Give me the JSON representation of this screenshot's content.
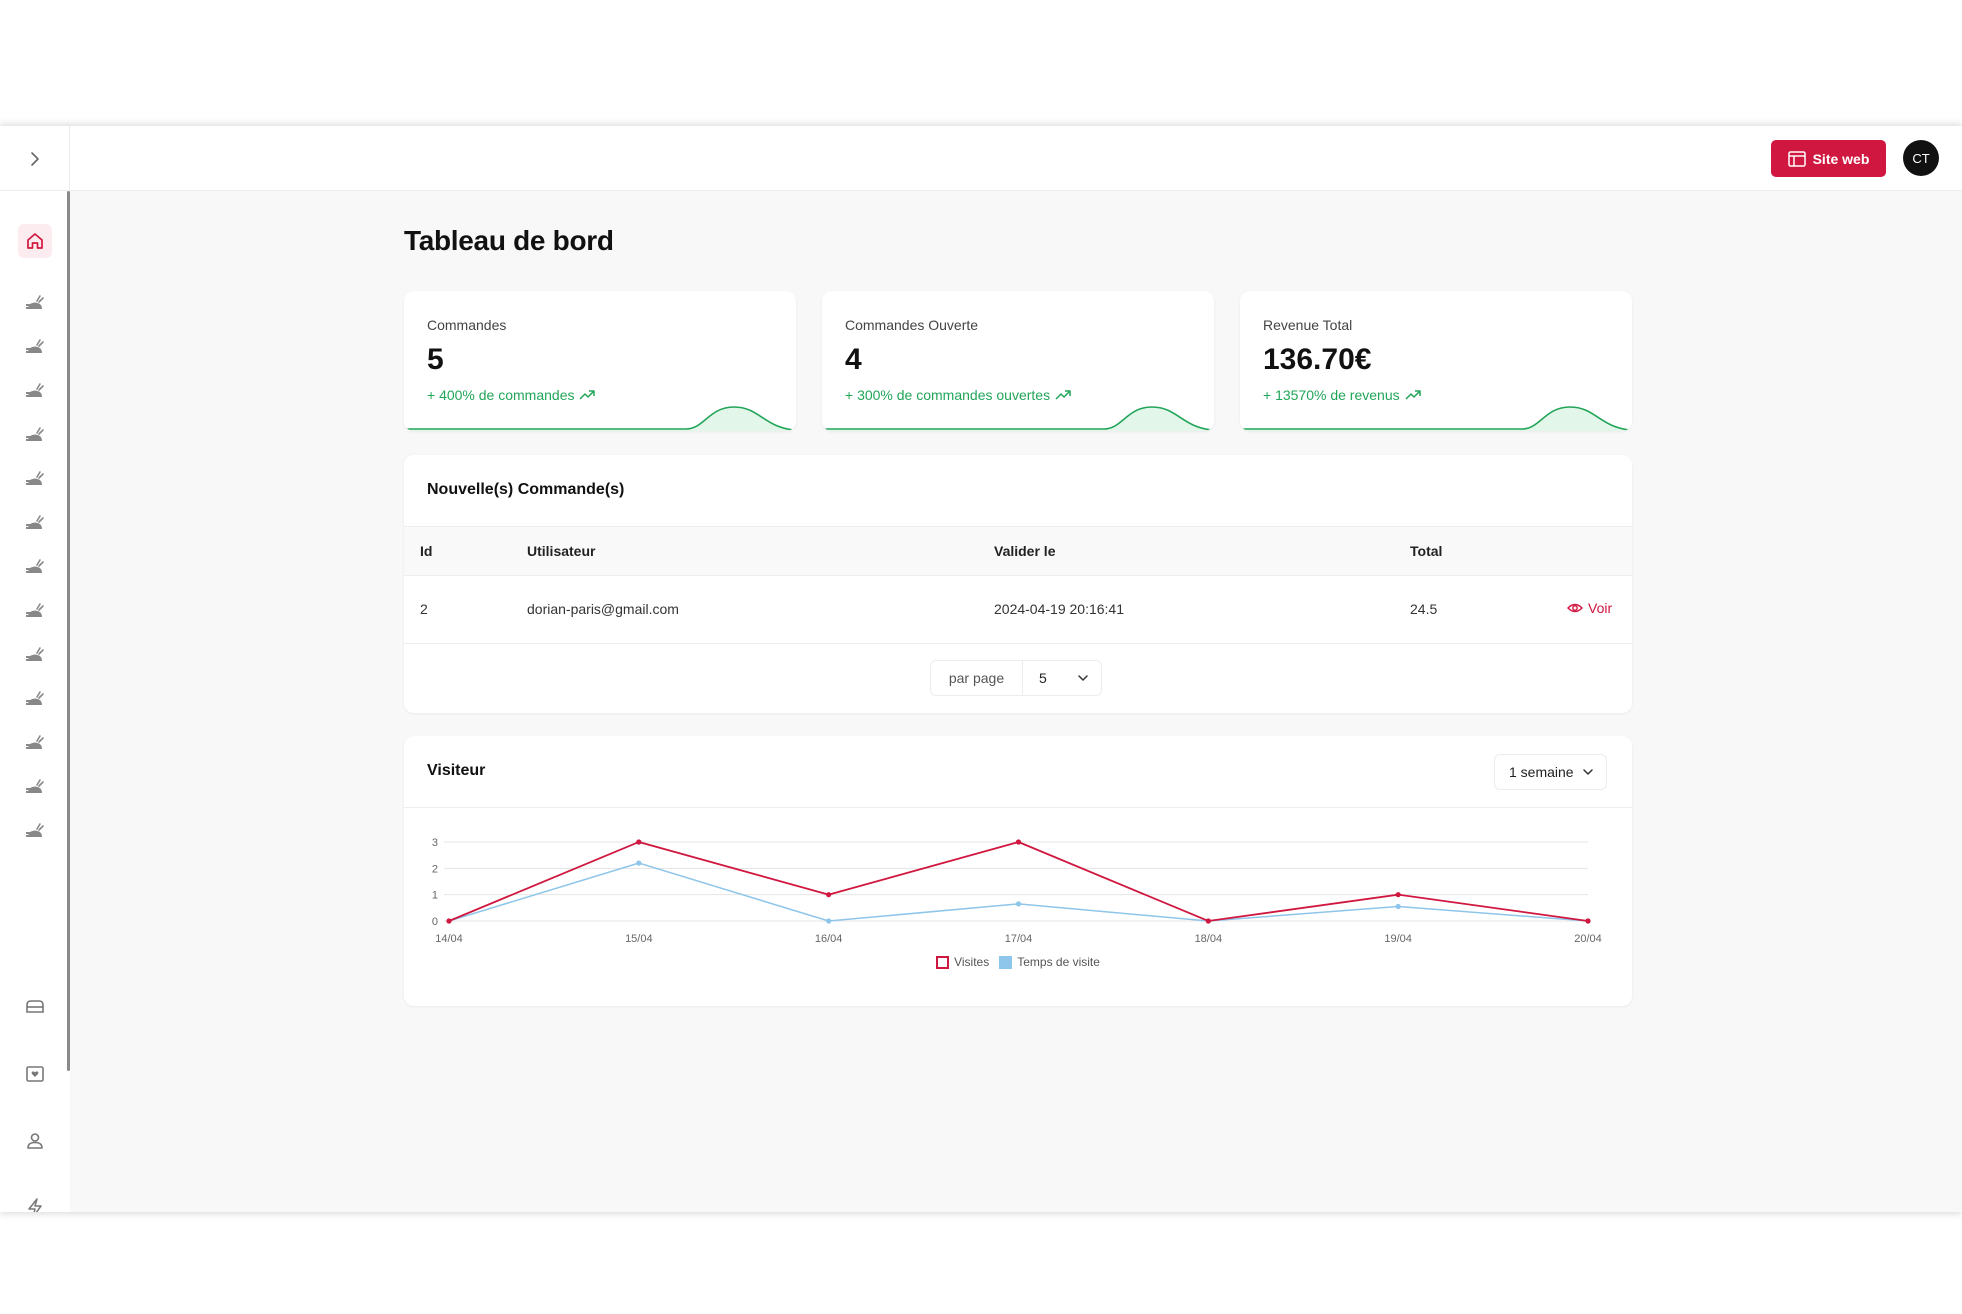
{
  "topbar": {
    "site_button_label": "Site web",
    "avatar_initials": "CT"
  },
  "page": {
    "title": "Tableau de bord"
  },
  "stats": [
    {
      "label": "Commandes",
      "value": "5",
      "trend": "+ 400% de commandes"
    },
    {
      "label": "Commandes Ouverte",
      "value": "4",
      "trend": "+ 300% de commandes ouvertes"
    },
    {
      "label": "Revenue Total",
      "value": "136.70€",
      "trend": "+ 13570% de revenus"
    }
  ],
  "orders": {
    "title": "Nouvelle(s) Commande(s)",
    "columns": [
      "Id",
      "Utilisateur",
      "Valider le",
      "Total"
    ],
    "rows": [
      {
        "id": "2",
        "user": "dorian-paris@gmail.com",
        "date": "2024-04-19 20:16:41",
        "total": "24.5",
        "action": "Voir"
      }
    ],
    "pager_label": "par page",
    "pager_value": "5"
  },
  "visitors": {
    "title": "Visiteur",
    "range": "1 semaine"
  },
  "colors": {
    "accent": "#d0173f",
    "success": "#22a559",
    "series_visits": "#d0173f",
    "series_time": "#8ec5ea"
  },
  "chart_data": {
    "type": "line",
    "x": [
      "14/04",
      "15/04",
      "16/04",
      "17/04",
      "18/04",
      "19/04",
      "20/04"
    ],
    "yticks": [
      0,
      1,
      2,
      3
    ],
    "ylim": [
      0,
      3
    ],
    "grid": true,
    "legend_position": "bottom",
    "series": [
      {
        "name": "Visites",
        "values": [
          0,
          3,
          1,
          3,
          0,
          1,
          0
        ]
      },
      {
        "name": "Temps de visite",
        "values": [
          0,
          2.2,
          0,
          0.65,
          0,
          0.55,
          0
        ]
      }
    ]
  }
}
